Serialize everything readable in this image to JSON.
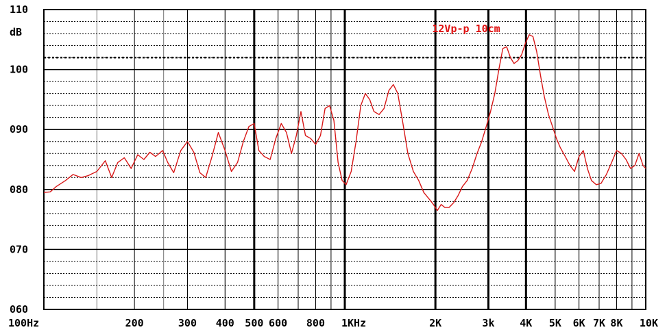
{
  "chart_data": {
    "type": "line",
    "title": "",
    "ylabel": "dB",
    "xlabel": "",
    "xscale": "log",
    "xlim": [
      100,
      10000
    ],
    "ylim": [
      60,
      110
    ],
    "grid": true,
    "y_ticks": [
      {
        "value": 110,
        "label": "110"
      },
      {
        "value": 100,
        "label": "100"
      },
      {
        "value": 90,
        "label": "090"
      },
      {
        "value": 80,
        "label": "080"
      },
      {
        "value": 70,
        "label": "070"
      },
      {
        "value": 60,
        "label": "060"
      }
    ],
    "x_ticks": [
      {
        "value": 100,
        "label": "100Hz"
      },
      {
        "value": 200,
        "label": "200"
      },
      {
        "value": 300,
        "label": "300"
      },
      {
        "value": 400,
        "label": "400"
      },
      {
        "value": 500,
        "label": "500"
      },
      {
        "value": 600,
        "label": "600"
      },
      {
        "value": 800,
        "label": "800"
      },
      {
        "value": 1000,
        "label": "1KHz"
      },
      {
        "value": 2000,
        "label": "2K"
      },
      {
        "value": 3000,
        "label": "3k"
      },
      {
        "value": 4000,
        "label": "4K"
      },
      {
        "value": 5000,
        "label": "5K"
      },
      {
        "value": 6000,
        "label": "6K"
      },
      {
        "value": 7000,
        "label": "7K"
      },
      {
        "value": 8000,
        "label": "8K"
      },
      {
        "value": 10000,
        "label": "10K"
      }
    ],
    "reference_line": 102,
    "annotation": {
      "text": "12Vp-p 10cm",
      "x": 2700,
      "y": 106
    },
    "line_color": "#d81818",
    "series": [
      {
        "name": "",
        "points": [
          [
            100,
            79.5
          ],
          [
            105,
            79.6
          ],
          [
            110,
            80.5
          ],
          [
            118,
            81.5
          ],
          [
            125,
            82.5
          ],
          [
            133,
            82.0
          ],
          [
            140,
            82.3
          ],
          [
            150,
            83.0
          ],
          [
            160,
            84.8
          ],
          [
            168,
            82.0
          ],
          [
            176,
            84.5
          ],
          [
            185,
            85.3
          ],
          [
            195,
            83.5
          ],
          [
            205,
            85.8
          ],
          [
            215,
            85.0
          ],
          [
            225,
            86.2
          ],
          [
            235,
            85.5
          ],
          [
            248,
            86.5
          ],
          [
            258,
            84.5
          ],
          [
            270,
            82.8
          ],
          [
            285,
            86.5
          ],
          [
            300,
            88.0
          ],
          [
            315,
            86.2
          ],
          [
            330,
            82.8
          ],
          [
            345,
            82.0
          ],
          [
            362,
            85.5
          ],
          [
            380,
            89.5
          ],
          [
            400,
            86.5
          ],
          [
            420,
            83.0
          ],
          [
            440,
            84.5
          ],
          [
            460,
            88.0
          ],
          [
            480,
            90.5
          ],
          [
            500,
            91.0
          ],
          [
            518,
            86.5
          ],
          [
            540,
            85.5
          ],
          [
            565,
            85.0
          ],
          [
            590,
            88.5
          ],
          [
            615,
            91.0
          ],
          [
            640,
            89.5
          ],
          [
            665,
            86.0
          ],
          [
            690,
            89.0
          ],
          [
            715,
            93.0
          ],
          [
            740,
            89.0
          ],
          [
            770,
            88.5
          ],
          [
            800,
            87.5
          ],
          [
            830,
            89.0
          ],
          [
            860,
            93.5
          ],
          [
            890,
            94.0
          ],
          [
            920,
            91.5
          ],
          [
            950,
            84.5
          ],
          [
            980,
            81.5
          ],
          [
            1010,
            80.8
          ],
          [
            1050,
            83.0
          ],
          [
            1090,
            88.0
          ],
          [
            1130,
            94.0
          ],
          [
            1170,
            96.0
          ],
          [
            1210,
            95.0
          ],
          [
            1250,
            93.0
          ],
          [
            1300,
            92.5
          ],
          [
            1350,
            93.5
          ],
          [
            1400,
            96.5
          ],
          [
            1450,
            97.5
          ],
          [
            1500,
            96.0
          ],
          [
            1560,
            91.0
          ],
          [
            1620,
            86.0
          ],
          [
            1690,
            83.0
          ],
          [
            1760,
            81.5
          ],
          [
            1830,
            79.5
          ],
          [
            1900,
            78.5
          ],
          [
            1970,
            77.5
          ],
          [
            2030,
            76.5
          ],
          [
            2090,
            77.5
          ],
          [
            2150,
            77.0
          ],
          [
            2220,
            77.0
          ],
          [
            2300,
            77.8
          ],
          [
            2380,
            79.0
          ],
          [
            2460,
            80.5
          ],
          [
            2550,
            81.5
          ],
          [
            2650,
            83.5
          ],
          [
            2750,
            86.0
          ],
          [
            2850,
            88.0
          ],
          [
            2950,
            90.5
          ],
          [
            3050,
            93.0
          ],
          [
            3150,
            96.0
          ],
          [
            3250,
            100.0
          ],
          [
            3350,
            103.5
          ],
          [
            3450,
            103.8
          ],
          [
            3550,
            102.0
          ],
          [
            3650,
            101.0
          ],
          [
            3760,
            101.5
          ],
          [
            3870,
            102.5
          ],
          [
            3990,
            104.5
          ],
          [
            4100,
            105.8
          ],
          [
            4220,
            105.5
          ],
          [
            4340,
            103.0
          ],
          [
            4470,
            99.0
          ],
          [
            4600,
            95.5
          ],
          [
            4750,
            92.5
          ],
          [
            4900,
            90.5
          ],
          [
            5050,
            88.5
          ],
          [
            5200,
            87.0
          ],
          [
            5400,
            85.5
          ],
          [
            5600,
            84.0
          ],
          [
            5800,
            83.0
          ],
          [
            6000,
            85.5
          ],
          [
            6200,
            86.5
          ],
          [
            6400,
            83.5
          ],
          [
            6600,
            81.5
          ],
          [
            6850,
            80.8
          ],
          [
            7100,
            81.0
          ],
          [
            7400,
            82.5
          ],
          [
            7700,
            84.5
          ],
          [
            8000,
            86.5
          ],
          [
            8300,
            86.0
          ],
          [
            8600,
            85.0
          ],
          [
            8900,
            83.5
          ],
          [
            9200,
            84.0
          ],
          [
            9500,
            86.0
          ],
          [
            9800,
            84.0
          ],
          [
            10000,
            83.5
          ]
        ]
      }
    ]
  }
}
